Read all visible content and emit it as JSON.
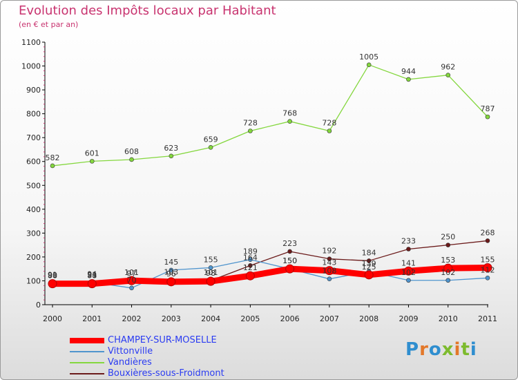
{
  "title": "Evolution des Impôts locaux par Habitant",
  "subtitle": "(en € et par an)",
  "logo": {
    "text": "Proxiti",
    "colors": [
      "#2f8ecf",
      "#e3782a",
      "#2f8ecf",
      "#7dbb2e",
      "#e3782a",
      "#7dbb2e",
      "#2f8ecf"
    ]
  },
  "chart_data": {
    "type": "line",
    "x": [
      "2000",
      "2001",
      "2002",
      "2003",
      "2004",
      "2005",
      "2006",
      "2007",
      "2008",
      "2009",
      "2010",
      "2011"
    ],
    "ylim": [
      0,
      1100
    ],
    "yticks": [
      0,
      100,
      200,
      300,
      400,
      500,
      600,
      700,
      800,
      900,
      1000,
      1100
    ],
    "grid": false,
    "legend_position": "bottom-left",
    "series": [
      {
        "name": "CHAMPEY-SUR-MOSELLE",
        "color": "#ff0000",
        "values": [
          88,
          88,
          101,
          96,
          98,
          121,
          150,
          143,
          125,
          141,
          153,
          155
        ],
        "labels": [
          "88",
          "88",
          "101",
          "96",
          "98",
          "121",
          "150",
          "143",
          "125",
          "141",
          "153",
          "155"
        ]
      },
      {
        "name": "Vittonville",
        "color": "#4f94cd",
        "values": [
          91,
          94,
          70,
          145,
          155,
          189,
          150,
          108,
          139,
          102,
          102,
          112
        ],
        "labels": [
          "91",
          "94",
          "70",
          "145",
          "155",
          "189",
          "150",
          "108",
          "139",
          "102",
          "102",
          "112"
        ]
      },
      {
        "name": "Vandières",
        "color": "#84d73e",
        "values": [
          582,
          601,
          608,
          623,
          659,
          728,
          768,
          728,
          1005,
          944,
          962,
          787
        ],
        "labels": [
          "582",
          "601",
          "608",
          "623",
          "659",
          "728",
          "768",
          "728",
          "1005",
          "944",
          "962",
          "787"
        ]
      },
      {
        "name": "Bouxières-sous-Froidmont",
        "color": "#6b1a1a",
        "values": [
          90,
          91,
          97,
          103,
          101,
          164,
          223,
          192,
          184,
          233,
          250,
          268
        ],
        "labels": [
          "90",
          "91",
          "97",
          "103",
          "101",
          "164",
          "223",
          "192",
          "184",
          "233",
          "250",
          "268"
        ]
      }
    ]
  }
}
